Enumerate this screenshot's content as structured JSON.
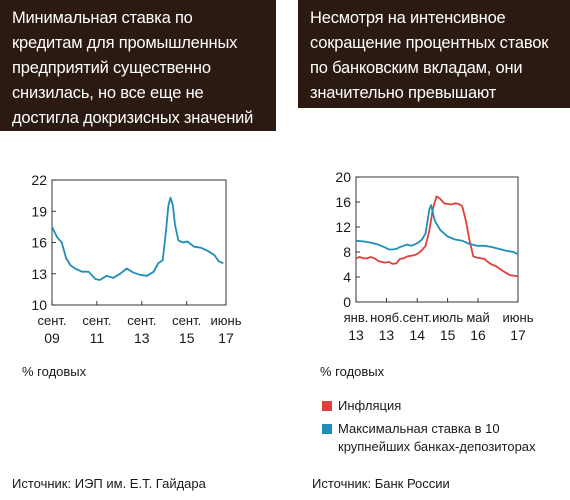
{
  "headers": {
    "left": "Минимальная ставка по кредитам для промышленных предприятий существенно снизилась, но все еще не достигла докризисных значений",
    "right": "Несмотря на интенсивное сокращение процентных ставок по банковским вкладам, они значительно превышают инфляцию"
  },
  "units": {
    "left": "% годовых",
    "right": "% годовых"
  },
  "sources": {
    "left": "Источник: ИЭП им. Е.Т. Гайдара",
    "right": "Источник: Банк России"
  },
  "legend": [
    {
      "label": "Инфляция",
      "color": "#e0403a"
    },
    {
      "label": "Максимальная ставка в 10 крупнейших банках-депозиторах",
      "color": "#1f8fb5"
    }
  ],
  "chart_data": [
    {
      "type": "line",
      "title": "",
      "xlabel": "",
      "ylabel": "% годовых",
      "ylim": [
        10,
        22
      ],
      "yticks": [
        10,
        13,
        16,
        19,
        22
      ],
      "xticks": [
        {
          "x": 2009.67,
          "label1": "сент.",
          "label2": "09"
        },
        {
          "x": 2011.67,
          "label1": "сент.",
          "label2": "11"
        },
        {
          "x": 2013.67,
          "label1": "сент.",
          "label2": "13"
        },
        {
          "x": 2015.67,
          "label1": "сент.",
          "label2": "15"
        },
        {
          "x": 2017.42,
          "label1": "июнь",
          "label2": "17"
        }
      ],
      "xlim": [
        2009.67,
        2017.42
      ],
      "series": [
        {
          "color": "#1f8fb5",
          "x": [
            2009.67,
            2009.9,
            2010.1,
            2010.3,
            2010.5,
            2010.7,
            2011.0,
            2011.3,
            2011.6,
            2011.8,
            2012.1,
            2012.4,
            2012.7,
            2013.0,
            2013.3,
            2013.6,
            2013.9,
            2014.2,
            2014.4,
            2014.6,
            2014.75,
            2014.85,
            2014.95,
            2015.05,
            2015.15,
            2015.3,
            2015.5,
            2015.7,
            2016.0,
            2016.3,
            2016.6,
            2016.9,
            2017.1,
            2017.3
          ],
          "y": [
            17.5,
            16.5,
            16.0,
            14.5,
            13.8,
            13.5,
            13.2,
            13.2,
            12.5,
            12.4,
            12.8,
            12.6,
            13.0,
            13.5,
            13.1,
            12.9,
            12.8,
            13.2,
            14.0,
            14.3,
            17.2,
            19.5,
            20.3,
            19.6,
            17.7,
            16.2,
            16.0,
            16.1,
            15.6,
            15.5,
            15.2,
            14.8,
            14.2,
            14.0
          ]
        }
      ]
    },
    {
      "type": "line",
      "title": "",
      "xlabel": "",
      "ylabel": "% годовых",
      "ylim": [
        0,
        20
      ],
      "yticks": [
        0,
        4,
        8,
        12,
        16,
        20
      ],
      "xticks": [
        {
          "x": 2013.0,
          "label1": "янв.",
          "label2": "13"
        },
        {
          "x": 2013.83,
          "label1": "нояб.",
          "label2": "13"
        },
        {
          "x": 2014.67,
          "label1": "сент.",
          "label2": "14"
        },
        {
          "x": 2015.5,
          "label1": "июль",
          "label2": "15"
        },
        {
          "x": 2016.33,
          "label1": "май",
          "label2": "16"
        },
        {
          "x": 2017.42,
          "label1": "июнь",
          "label2": "17"
        }
      ],
      "xlim": [
        2013.0,
        2017.42
      ],
      "series": [
        {
          "name": "Инфляция",
          "color": "#e0403a",
          "x": [
            2013.0,
            2013.1,
            2013.2,
            2013.3,
            2013.4,
            2013.5,
            2013.6,
            2013.7,
            2013.8,
            2013.9,
            2014.0,
            2014.1,
            2014.2,
            2014.3,
            2014.4,
            2014.5,
            2014.6,
            2014.7,
            2014.8,
            2014.9,
            2015.0,
            2015.1,
            2015.2,
            2015.3,
            2015.4,
            2015.5,
            2015.6,
            2015.7,
            2015.8,
            2015.9,
            2016.0,
            2016.1,
            2016.2,
            2016.3,
            2016.4,
            2016.5,
            2016.6,
            2016.7,
            2016.8,
            2016.9,
            2017.0,
            2017.2,
            2017.42
          ],
          "y": [
            7.0,
            7.2,
            7.0,
            7.0,
            7.2,
            7.0,
            6.6,
            6.4,
            6.3,
            6.4,
            6.1,
            6.2,
            6.9,
            7.0,
            7.3,
            7.4,
            7.5,
            7.8,
            8.3,
            9.0,
            11.4,
            15.0,
            16.9,
            16.5,
            15.8,
            15.7,
            15.6,
            15.8,
            15.7,
            15.3,
            12.9,
            9.8,
            7.3,
            7.1,
            7.0,
            6.9,
            6.4,
            6.0,
            5.8,
            5.4,
            5.0,
            4.3,
            4.1
          ]
        },
        {
          "name": "Максимальная ставка в 10 крупнейших банках-депозиторах",
          "color": "#1f8fb5",
          "x": [
            2013.0,
            2013.2,
            2013.4,
            2013.6,
            2013.8,
            2013.9,
            2014.0,
            2014.1,
            2014.2,
            2014.3,
            2014.4,
            2014.5,
            2014.6,
            2014.7,
            2014.8,
            2014.9,
            2015.0,
            2015.05,
            2015.15,
            2015.3,
            2015.5,
            2015.7,
            2015.9,
            2016.1,
            2016.3,
            2016.5,
            2016.7,
            2016.9,
            2017.1,
            2017.3,
            2017.42
          ],
          "y": [
            9.8,
            9.7,
            9.5,
            9.2,
            8.7,
            8.4,
            8.4,
            8.5,
            8.8,
            9.0,
            9.2,
            9.0,
            9.2,
            9.5,
            10.0,
            11.0,
            14.8,
            15.5,
            13.0,
            11.5,
            10.5,
            10.0,
            9.8,
            9.3,
            9.0,
            9.0,
            8.8,
            8.5,
            8.2,
            8.0,
            7.6
          ]
        }
      ]
    }
  ]
}
